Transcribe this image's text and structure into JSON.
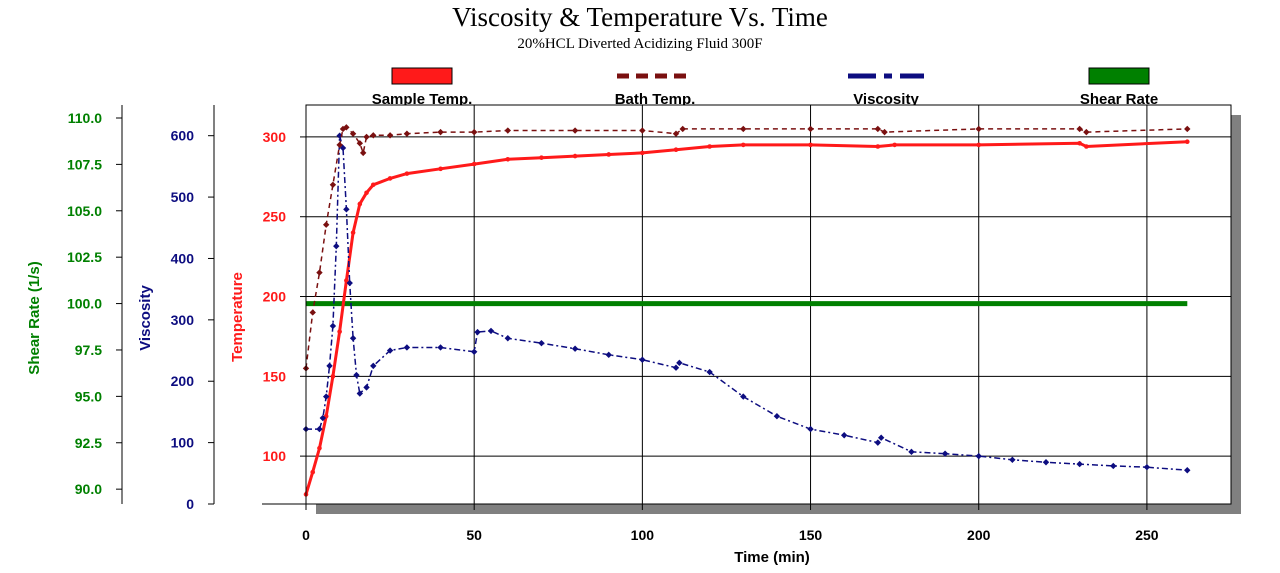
{
  "colors": {
    "sample_temp": "#ff1a1a",
    "bath_temp": "#7a1010",
    "viscosity": "#0d0d80",
    "shear_rate": "#008000",
    "shadow": "#808080"
  },
  "chart_data": {
    "type": "line",
    "title": "Viscosity & Temperature Vs. Time",
    "subtitle": "20%HCL Diverted Acidizing Fluid 300F",
    "xlabel": "Time (min)",
    "xlim": [
      0,
      275
    ],
    "xticks": [
      0,
      50,
      100,
      150,
      200,
      250
    ],
    "grid": true,
    "legend_position": "top",
    "axes": {
      "temperature": {
        "label": "Temperature",
        "range": [
          70,
          320
        ],
        "ticks": [
          100,
          150,
          200,
          250,
          300
        ]
      },
      "viscosity": {
        "label": "Viscosity",
        "range": [
          0,
          650
        ],
        "ticks": [
          0,
          100,
          200,
          300,
          400,
          500,
          600
        ]
      },
      "shear_rate": {
        "label": "Shear Rate (1/s)",
        "range": [
          89.2,
          110.7
        ],
        "ticks": [
          "90.0",
          "92.5",
          "95.0",
          "97.5",
          "100.0",
          "102.5",
          "105.0",
          "107.5",
          "110.0"
        ]
      }
    },
    "legend": [
      {
        "key": "sample_temp",
        "label": "Sample Temp."
      },
      {
        "key": "bath_temp",
        "label": "Bath Temp."
      },
      {
        "key": "viscosity",
        "label": "Viscosity"
      },
      {
        "key": "shear_rate",
        "label": "Shear Rate"
      }
    ],
    "series": [
      {
        "key": "sample_temp",
        "name": "Sample Temp.",
        "axis": "temperature",
        "x": [
          0,
          2,
          4,
          6,
          8,
          10,
          12,
          14,
          16,
          18,
          20,
          25,
          30,
          40,
          50,
          60,
          70,
          80,
          90,
          100,
          110,
          120,
          130,
          150,
          170,
          175,
          200,
          230,
          232,
          262
        ],
        "y": [
          76,
          90,
          105,
          125,
          150,
          178,
          210,
          240,
          258,
          265,
          270,
          274,
          277,
          280,
          283,
          286,
          287,
          288,
          289,
          290,
          292,
          294,
          295,
          295,
          294,
          295,
          295,
          296,
          294,
          297
        ]
      },
      {
        "key": "bath_temp",
        "name": "Bath Temp.",
        "axis": "temperature",
        "x": [
          0,
          2,
          4,
          6,
          8,
          10,
          11,
          12,
          14,
          16,
          17,
          18,
          20,
          25,
          30,
          40,
          50,
          60,
          80,
          100,
          110,
          112,
          130,
          150,
          170,
          172,
          200,
          230,
          232,
          262
        ],
        "y": [
          155,
          190,
          215,
          245,
          270,
          295,
          305,
          306,
          302,
          296,
          290,
          300,
          301,
          301,
          302,
          303,
          303,
          304,
          304,
          304,
          302,
          305,
          305,
          305,
          305,
          303,
          305,
          305,
          303,
          305
        ]
      },
      {
        "key": "viscosity",
        "name": "Viscosity",
        "axis": "viscosity",
        "x": [
          0,
          4,
          5,
          6,
          7,
          8,
          9,
          10,
          11,
          12,
          13,
          14,
          15,
          16,
          18,
          20,
          25,
          30,
          40,
          50,
          51,
          55,
          60,
          70,
          80,
          90,
          100,
          110,
          111,
          120,
          130,
          140,
          150,
          160,
          170,
          171,
          180,
          190,
          200,
          210,
          220,
          230,
          240,
          250,
          262
        ],
        "y": [
          122,
          122,
          140,
          175,
          225,
          290,
          420,
          600,
          580,
          480,
          360,
          270,
          210,
          180,
          190,
          225,
          250,
          255,
          255,
          248,
          280,
          282,
          270,
          262,
          253,
          243,
          235,
          222,
          230,
          215,
          175,
          143,
          122,
          112,
          100,
          108,
          85,
          82,
          78,
          72,
          68,
          65,
          62,
          60,
          55
        ]
      },
      {
        "key": "shear_rate",
        "name": "Shear Rate",
        "axis": "shear_rate",
        "x": [
          0,
          262
        ],
        "y": [
          100,
          100
        ]
      }
    ]
  }
}
